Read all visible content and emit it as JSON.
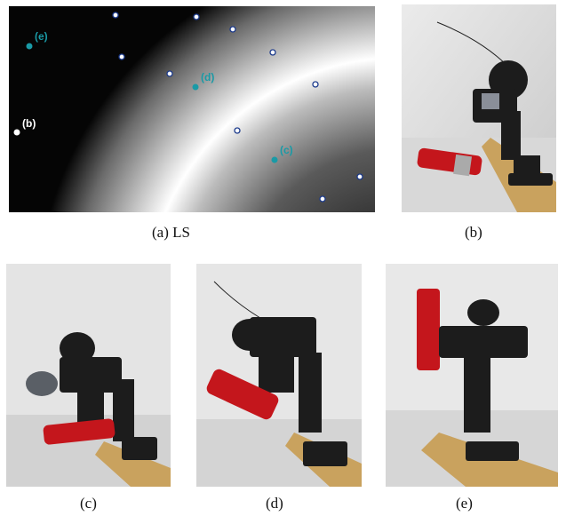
{
  "heatmap": {
    "point_labels": [
      "(e)",
      "(b)",
      "(d)",
      "(c)"
    ],
    "highlight_color": "#1a9aa6",
    "white_point_color": "#ffffff",
    "hollow_point_color": "#1b3a8c"
  },
  "captions": {
    "a": "(a)  LS",
    "b": "(b)",
    "c": "(c)",
    "d": "(d)",
    "e": "(e)"
  },
  "photos": {
    "b": {
      "object_color": "#c4161c",
      "wood_color": "#c9a25e"
    },
    "c": {
      "object_color": "#c4161c",
      "wood_color": "#c9a25e"
    },
    "d": {
      "object_color": "#c4161c",
      "wood_color": "#c9a25e"
    },
    "e": {
      "object_color": "#c4161c",
      "wood_color": "#c9a25e"
    }
  }
}
